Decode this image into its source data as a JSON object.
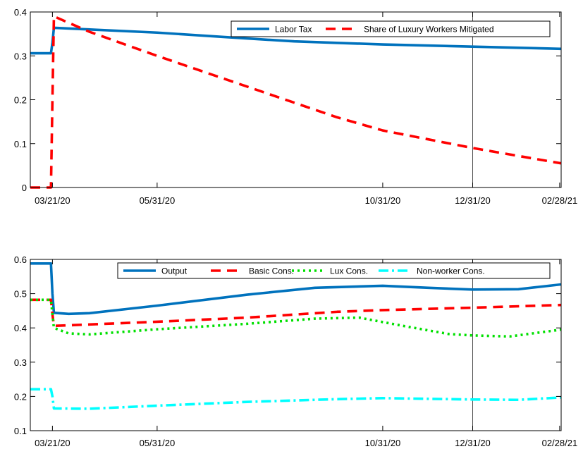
{
  "chart_data": [
    {
      "type": "line",
      "title": "",
      "xlabel": "",
      "ylabel": "",
      "xlim": [
        "2020-03-06",
        "2021-03-01"
      ],
      "ylim": [
        0,
        0.4
      ],
      "x_ticks": [
        "2020-03-21",
        "2020-05-31",
        "2020-10-31",
        "2020-12-31",
        "2021-02-28"
      ],
      "x_tick_labels": [
        "03/21/20",
        "05/31/20",
        "10/31/20",
        "12/31/20",
        "02/28/21"
      ],
      "y_ticks": [
        0,
        0.1,
        0.2,
        0.3,
        0.4
      ],
      "y_tick_labels": [
        "0",
        "0.1",
        "0.2",
        "0.3",
        "0.4"
      ],
      "grid": false,
      "vertical_marker": "2020-12-31",
      "legend_position": "top-right",
      "legend_layout": "horizontal",
      "series": [
        {
          "name": "Labor Tax",
          "color": "#0072BD",
          "style": "solid",
          "x": [
            "2020-03-06",
            "2020-03-20",
            "2020-03-21",
            "2020-03-22",
            "2020-04-10",
            "2020-05-31",
            "2020-07-15",
            "2020-09-01",
            "2020-10-31",
            "2020-12-31",
            "2021-03-01"
          ],
          "y": [
            0.306,
            0.306,
            0.33,
            0.364,
            0.361,
            0.353,
            0.343,
            0.333,
            0.326,
            0.321,
            0.316
          ]
        },
        {
          "name": "Share of Luxury Workers Mitigated",
          "color": "#FF0000",
          "style": "dashed",
          "x": [
            "2020-03-06",
            "2020-03-20",
            "2020-03-21",
            "2020-03-22",
            "2020-04-15",
            "2020-05-31",
            "2020-07-31",
            "2020-09-30",
            "2020-10-31",
            "2020-12-31",
            "2021-03-01"
          ],
          "y": [
            0,
            0,
            0.2,
            0.39,
            0.355,
            0.3,
            0.23,
            0.16,
            0.13,
            0.09,
            0.055
          ]
        }
      ]
    },
    {
      "type": "line",
      "title": "",
      "xlabel": "",
      "ylabel": "",
      "xlim": [
        "2020-03-06",
        "2021-03-01"
      ],
      "ylim": [
        0.1,
        0.6
      ],
      "x_ticks": [
        "2020-03-21",
        "2020-05-31",
        "2020-10-31",
        "2020-12-31",
        "2021-02-28"
      ],
      "x_tick_labels": [
        "03/21/20",
        "05/31/20",
        "10/31/20",
        "12/31/20",
        "02/28/21"
      ],
      "y_ticks": [
        0.1,
        0.2,
        0.3,
        0.4,
        0.5,
        0.6
      ],
      "y_tick_labels": [
        "0.1",
        "0.2",
        "0.3",
        "0.4",
        "0.5",
        "0.6"
      ],
      "grid": false,
      "vertical_marker": "2020-12-31",
      "legend_position": "top-right",
      "legend_layout": "horizontal",
      "series": [
        {
          "name": "Output",
          "color": "#0072BD",
          "style": "solid",
          "x": [
            "2020-03-06",
            "2020-03-20",
            "2020-03-21",
            "2020-03-22",
            "2020-04-01",
            "2020-04-15",
            "2020-05-31",
            "2020-07-31",
            "2020-09-15",
            "2020-10-31",
            "2020-12-01",
            "2020-12-31",
            "2021-01-31",
            "2021-03-01"
          ],
          "y": [
            0.588,
            0.588,
            0.5,
            0.444,
            0.441,
            0.443,
            0.465,
            0.497,
            0.517,
            0.523,
            0.517,
            0.512,
            0.513,
            0.527
          ]
        },
        {
          "name": "Basic Cons.",
          "color": "#FF0000",
          "style": "dashed",
          "x": [
            "2020-03-06",
            "2020-03-20",
            "2020-03-21",
            "2020-03-22",
            "2020-04-15",
            "2020-05-31",
            "2020-07-31",
            "2020-09-30",
            "2020-10-31",
            "2020-12-31",
            "2021-03-01"
          ],
          "y": [
            0.482,
            0.482,
            0.44,
            0.406,
            0.41,
            0.418,
            0.43,
            0.447,
            0.452,
            0.459,
            0.467
          ]
        },
        {
          "name": "Lux Cons.",
          "color": "#00E000",
          "style": "dotted",
          "x": [
            "2020-03-06",
            "2020-03-20",
            "2020-03-21",
            "2020-03-22",
            "2020-04-01",
            "2020-04-15",
            "2020-05-31",
            "2020-07-31",
            "2020-09-15",
            "2020-10-15",
            "2020-11-15",
            "2020-12-15",
            "2020-12-31",
            "2021-01-25",
            "2021-03-01"
          ],
          "y": [
            0.482,
            0.482,
            0.44,
            0.4,
            0.384,
            0.381,
            0.396,
            0.412,
            0.427,
            0.43,
            0.405,
            0.382,
            0.378,
            0.375,
            0.395
          ]
        },
        {
          "name": "Non-worker Cons.",
          "color": "#00FFFF",
          "style": "dashdot",
          "x": [
            "2020-03-06",
            "2020-03-20",
            "2020-03-21",
            "2020-03-22",
            "2020-04-15",
            "2020-05-31",
            "2020-07-31",
            "2020-09-30",
            "2020-10-31",
            "2020-12-31",
            "2021-01-31",
            "2021-03-01"
          ],
          "y": [
            0.221,
            0.221,
            0.2,
            0.165,
            0.164,
            0.173,
            0.184,
            0.192,
            0.195,
            0.191,
            0.19,
            0.197
          ]
        }
      ]
    }
  ],
  "colors": {
    "axis": "#000000",
    "marker": "#000000",
    "background": "#ffffff"
  }
}
